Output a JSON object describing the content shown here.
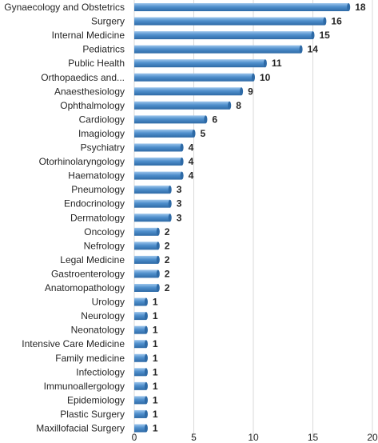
{
  "chart_data": {
    "type": "bar",
    "orientation": "horizontal",
    "categories": [
      "Gynaecology and Obstetrics",
      "Surgery",
      "Internal Medicine",
      "Pediatrics",
      "Public Health",
      "Orthopaedics and...",
      "Anaesthesiology",
      "Ophthalmology",
      "Cardiology",
      "Imagiology",
      "Psychiatry",
      "Otorhinolaryngology",
      "Haematology",
      "Pneumology",
      "Endocrinology",
      "Dermatology",
      "Oncology",
      "Nefrology",
      "Legal Medicine",
      "Gastroenterology",
      "Anatomopathology",
      "Urology",
      "Neurology",
      "Neonatology",
      "Intensive Care Medicine",
      "Family medicine",
      "Infectiology",
      "Immunoallergology",
      "Epidemiology",
      "Plastic Surgery",
      "Maxillofacial Surgery"
    ],
    "values": [
      18,
      16,
      15,
      14,
      11,
      10,
      9,
      8,
      6,
      5,
      4,
      4,
      4,
      3,
      3,
      3,
      2,
      2,
      2,
      2,
      2,
      1,
      1,
      1,
      1,
      1,
      1,
      1,
      1,
      1,
      1
    ],
    "xlim": [
      0,
      20
    ],
    "xticks": [
      0,
      5,
      10,
      15,
      20
    ],
    "grid": true,
    "data_labels": true,
    "bar_color": "#4f8fcc",
    "bar_color_light": "#9cc5ec",
    "bar_color_dark": "#2e6aa6",
    "grid_color": "#d9d9d9"
  }
}
